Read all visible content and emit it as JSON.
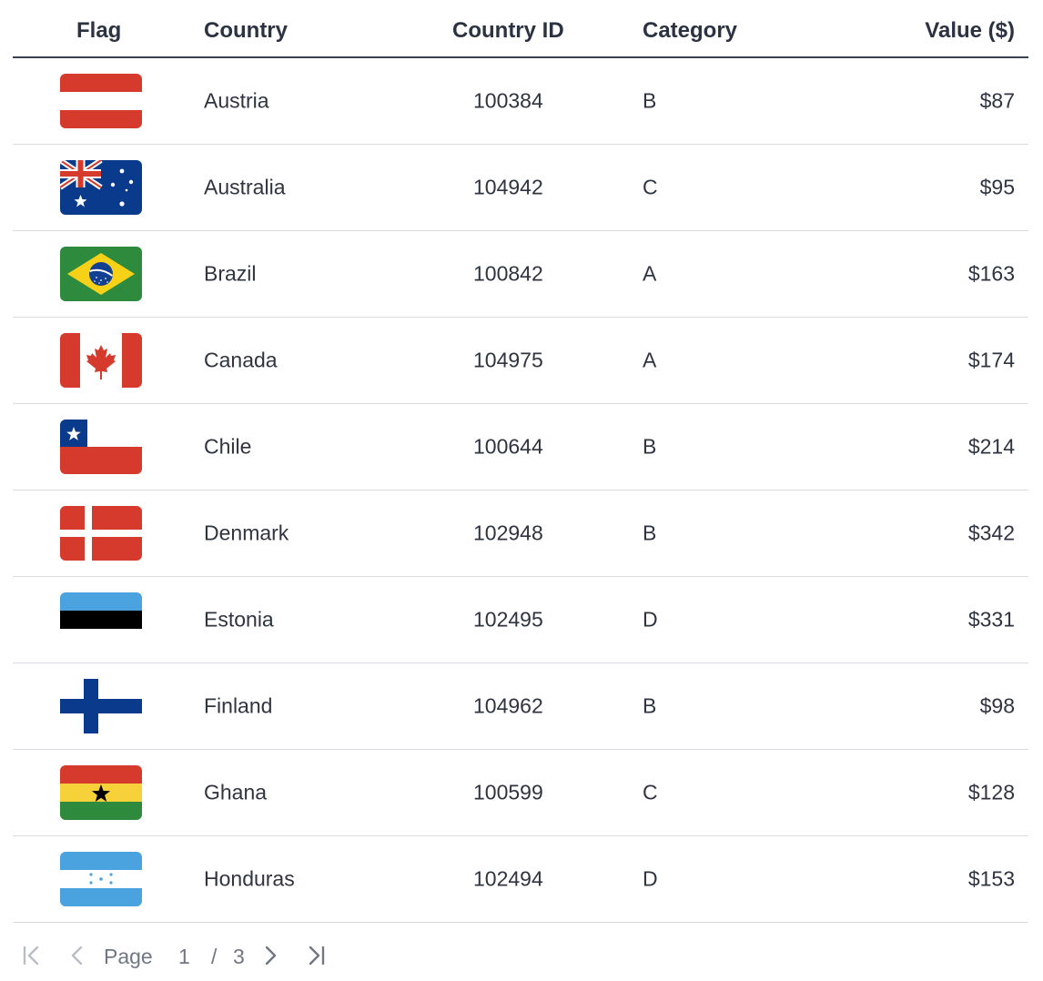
{
  "table": {
    "headers": {
      "flag": "Flag",
      "country": "Country",
      "country_id": "Country ID",
      "category": "Category",
      "value": "Value ($)"
    },
    "rows": [
      {
        "flag_icon": "austria-flag-icon",
        "country": "Austria",
        "country_id": "100384",
        "category": "B",
        "value": "$87"
      },
      {
        "flag_icon": "australia-flag-icon",
        "country": "Australia",
        "country_id": "104942",
        "category": "C",
        "value": "$95"
      },
      {
        "flag_icon": "brazil-flag-icon",
        "country": "Brazil",
        "country_id": "100842",
        "category": "A",
        "value": "$163"
      },
      {
        "flag_icon": "canada-flag-icon",
        "country": "Canada",
        "country_id": "104975",
        "category": "A",
        "value": "$174"
      },
      {
        "flag_icon": "chile-flag-icon",
        "country": "Chile",
        "country_id": "100644",
        "category": "B",
        "value": "$214"
      },
      {
        "flag_icon": "denmark-flag-icon",
        "country": "Denmark",
        "country_id": "102948",
        "category": "B",
        "value": "$342"
      },
      {
        "flag_icon": "estonia-flag-icon",
        "country": "Estonia",
        "country_id": "102495",
        "category": "D",
        "value": "$331"
      },
      {
        "flag_icon": "finland-flag-icon",
        "country": "Finland",
        "country_id": "104962",
        "category": "B",
        "value": "$98"
      },
      {
        "flag_icon": "ghana-flag-icon",
        "country": "Ghana",
        "country_id": "100599",
        "category": "C",
        "value": "$128"
      },
      {
        "flag_icon": "honduras-flag-icon",
        "country": "Honduras",
        "country_id": "102494",
        "category": "D",
        "value": "$153"
      }
    ]
  },
  "pagination": {
    "label": "Page",
    "current": "1",
    "separator": "/",
    "total": "3",
    "icons": {
      "first": "first-page-icon",
      "prev": "previous-page-icon",
      "next": "next-page-icon",
      "last": "last-page-icon"
    }
  },
  "colors": {
    "text": "#2e3440",
    "header_rule": "#3a4150",
    "row_rule": "#d9dce1",
    "pager_text": "#707784",
    "pager_disabled": "#b9bec6",
    "flag_red": "#d63a2c",
    "flag_blue": "#0a3a8c"
  }
}
